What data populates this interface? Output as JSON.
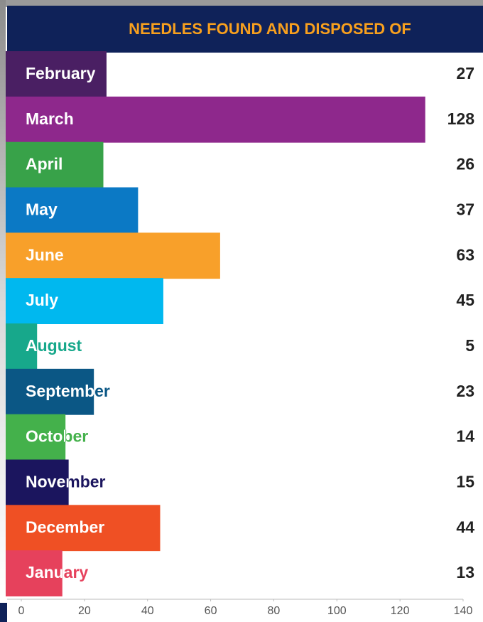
{
  "chart_data": {
    "type": "bar",
    "orientation": "horizontal",
    "title": "NEEDLES FOUND AND DISPOSED OF",
    "categories": [
      "February",
      "March",
      "April",
      "May",
      "June",
      "July",
      "August",
      "September",
      "October",
      "November",
      "December",
      "January"
    ],
    "values": [
      27,
      128,
      26,
      37,
      63,
      45,
      5,
      23,
      14,
      15,
      44,
      13
    ],
    "colors": [
      "#4a1f63",
      "#8e288c",
      "#38a249",
      "#0b79c5",
      "#f8a02a",
      "#00b8ef",
      "#17a88b",
      "#0b5785",
      "#44b14b",
      "#1b155e",
      "#ef5024",
      "#e6415c"
    ],
    "xlim": [
      0,
      140
    ],
    "xticks": [
      0,
      20,
      40,
      60,
      80,
      100,
      120,
      140
    ],
    "grid": false
  }
}
